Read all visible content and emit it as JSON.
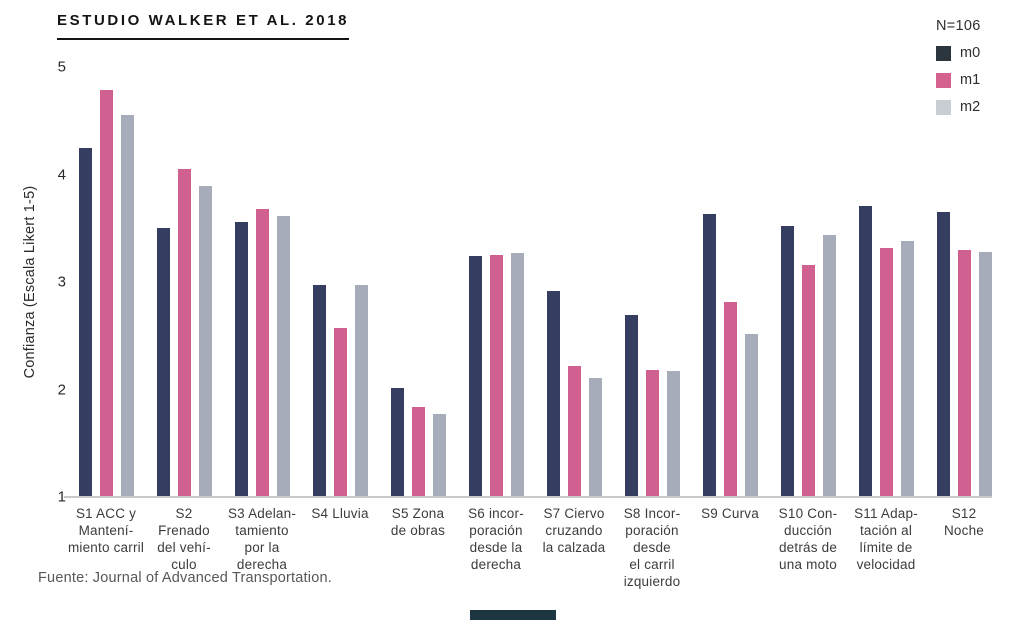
{
  "header": {
    "title": "ESTUDIO WALKER ET AL. 2018"
  },
  "legend": {
    "n_label": "N=106",
    "items": [
      {
        "label": "m0",
        "color": "#2b353d"
      },
      {
        "label": "m1",
        "color": "#d5618f"
      },
      {
        "label": "m2",
        "color": "#c9cdd4"
      }
    ]
  },
  "chart_data": {
    "type": "bar",
    "title": "ESTUDIO WALKER ET AL. 2018",
    "xlabel": "",
    "ylabel": "Confianza (Escala Likert 1-5)",
    "ylim": [
      1,
      5
    ],
    "yticks": [
      1,
      2,
      3,
      4,
      5
    ],
    "grid": false,
    "legend_position": "top-right",
    "sample_size_note": "N=106",
    "categories": [
      [
        "S1 ACC y",
        "Mantení-",
        "miento carril"
      ],
      [
        "S2",
        "Frenado",
        "del vehí-",
        "culo"
      ],
      [
        "S3 Adelan-",
        "tamiento",
        "por la",
        "derecha"
      ],
      [
        "S4 Lluvia"
      ],
      [
        "S5 Zona",
        "de obras"
      ],
      [
        "S6 incor-",
        "poración",
        "desde la",
        "derecha"
      ],
      [
        "S7 Ciervo",
        "cruzando",
        "la calzada"
      ],
      [
        "S8 Incor-",
        "poración",
        "desde",
        "el carril",
        "izquierdo"
      ],
      [
        "S9 Curva"
      ],
      [
        "S10 Con-",
        "ducción",
        "detrás de",
        "una moto"
      ],
      [
        "S11 Adap-",
        "tación al",
        "límite de",
        "velocidad"
      ],
      [
        "S12",
        "Noche"
      ]
    ],
    "series": [
      {
        "name": "m0",
        "color": "#353e60",
        "values": [
          4.25,
          3.5,
          3.56,
          2.97,
          2.01,
          3.24,
          2.92,
          2.69,
          3.63,
          3.52,
          3.71,
          3.65
        ]
      },
      {
        "name": "m1",
        "color": "#d0608f",
        "values": [
          4.79,
          4.05,
          3.68,
          2.57,
          1.84,
          3.25,
          2.22,
          2.18,
          2.81,
          3.16,
          3.32,
          3.3
        ]
      },
      {
        "name": "m2",
        "color": "#a7acba",
        "values": [
          4.55,
          3.89,
          3.61,
          2.97,
          1.77,
          3.27,
          2.11,
          2.17,
          2.52,
          3.44,
          3.38,
          3.28
        ]
      }
    ]
  },
  "footer": {
    "source": "Fuente: Journal of Advanced Transportation."
  },
  "misc": {
    "bottom_bar_color": "#1e3642"
  }
}
